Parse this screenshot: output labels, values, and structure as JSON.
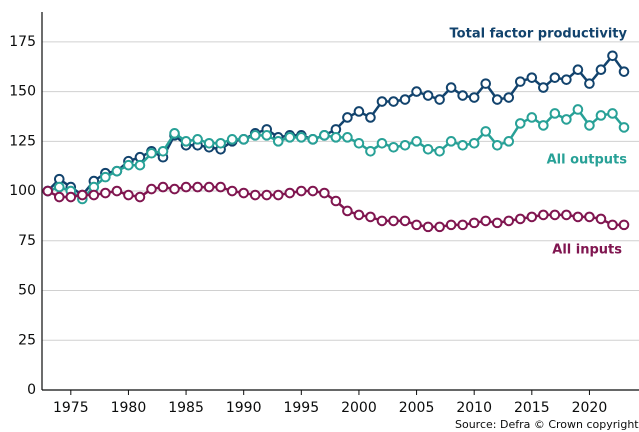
{
  "chart_data": {
    "type": "line",
    "source": "Source: Defra © Crown copyright",
    "x": [
      1973,
      1974,
      1975,
      1976,
      1977,
      1978,
      1979,
      1980,
      1981,
      1982,
      1983,
      1984,
      1985,
      1986,
      1987,
      1988,
      1989,
      1990,
      1991,
      1992,
      1993,
      1994,
      1995,
      1996,
      1997,
      1998,
      1999,
      2000,
      2001,
      2002,
      2003,
      2004,
      2005,
      2006,
      2007,
      2008,
      2009,
      2010,
      2011,
      2012,
      2013,
      2014,
      2015,
      2016,
      2017,
      2018,
      2019,
      2020,
      2021,
      2022,
      2023
    ],
    "series": [
      {
        "name": "Total factor productivity",
        "color": "#12436d",
        "values": [
          100,
          106,
          102,
          98,
          105,
          109,
          110,
          115,
          117,
          120,
          117,
          128,
          123,
          123,
          122,
          121,
          125,
          126,
          129,
          131,
          127,
          128,
          128,
          126,
          128,
          131,
          137,
          140,
          137,
          145,
          145,
          146,
          150,
          148,
          146,
          152,
          148,
          147,
          154,
          146,
          147,
          155,
          157,
          152,
          157,
          156,
          161,
          154,
          161,
          168,
          160
        ]
      },
      {
        "name": "All outputs",
        "color": "#28a197",
        "values": [
          100,
          102,
          100,
          96,
          102,
          107,
          110,
          113,
          113,
          119,
          120,
          129,
          125,
          126,
          124,
          124,
          126,
          126,
          128,
          128,
          125,
          127,
          127,
          126,
          128,
          127,
          127,
          124,
          120,
          124,
          122,
          123,
          125,
          121,
          120,
          125,
          123,
          124,
          130,
          123,
          125,
          134,
          137,
          133,
          139,
          136,
          141,
          133,
          138,
          139,
          132
        ]
      },
      {
        "name": "All inputs",
        "color": "#801650",
        "values": [
          100,
          97,
          97,
          98,
          98,
          99,
          100,
          98,
          97,
          101,
          102,
          101,
          102,
          102,
          102,
          102,
          100,
          99,
          98,
          98,
          98,
          99,
          100,
          100,
          99,
          95,
          90,
          88,
          87,
          85,
          85,
          85,
          83,
          82,
          82,
          83,
          83,
          84,
          85,
          84,
          85,
          86,
          87,
          88,
          88,
          88,
          87,
          87,
          86,
          83,
          83
        ]
      }
    ],
    "xlim": [
      1972.5,
      2024.3
    ],
    "xticks": [
      1975,
      1980,
      1985,
      1990,
      1995,
      2000,
      2005,
      2010,
      2015,
      2020
    ],
    "ylim": [
      0,
      190
    ],
    "yticks": [
      0,
      25,
      50,
      75,
      100,
      125,
      150,
      175
    ],
    "grid": true
  }
}
